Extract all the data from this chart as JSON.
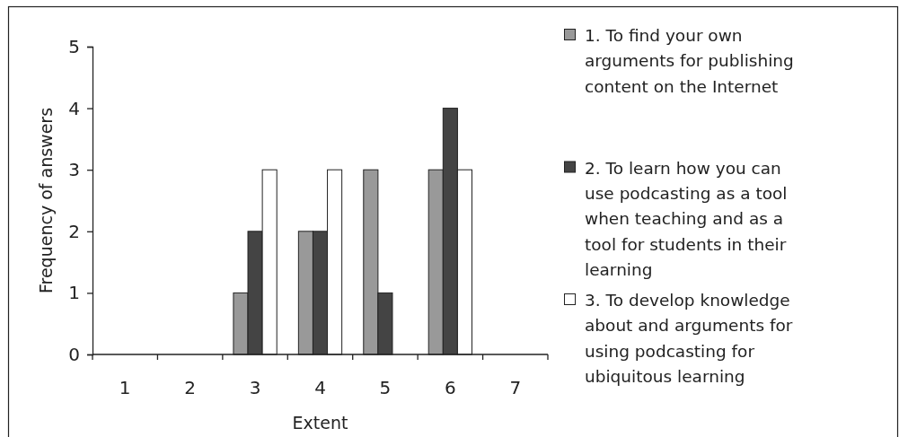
{
  "chart_data": {
    "type": "bar",
    "xlabel": "Extent",
    "ylabel": "Frequency of answers",
    "categories": [
      "1",
      "2",
      "3",
      "4",
      "5",
      "6",
      "7"
    ],
    "series": [
      {
        "name": "1. To find your own arguments for publishing content on the Internet",
        "color": "#999999",
        "values": [
          0,
          0,
          1,
          2,
          3,
          3,
          0
        ]
      },
      {
        "name": "2. To learn how you can use podcasting as a tool when teaching and as a tool for students in their learning",
        "color": "#444444",
        "values": [
          0,
          0,
          2,
          2,
          1,
          4,
          0
        ]
      },
      {
        "name": "3. To develop knowledge about and arguments for using podcasting for ubiquitous learning",
        "color": "#ffffff",
        "values": [
          0,
          0,
          3,
          3,
          0,
          3,
          0
        ]
      }
    ],
    "ylim": [
      0,
      5
    ],
    "yticks": [
      0,
      1,
      2,
      3,
      4,
      5
    ],
    "grid": false,
    "legend": "right"
  }
}
